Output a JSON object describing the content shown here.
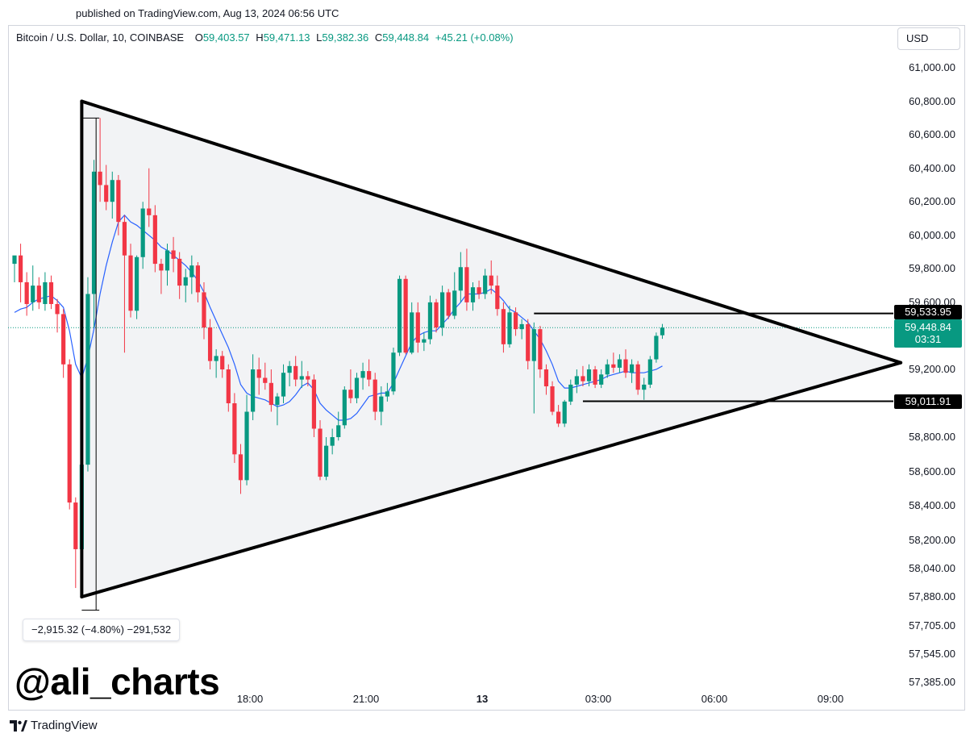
{
  "published": "published on TradingView.com, Aug 13, 2024 06:56 UTC",
  "legend": {
    "symbol": "Bitcoin / U.S. Dollar, 10, COINBASE",
    "o_key": "O",
    "o": "59,403.57",
    "h_key": "H",
    "h": "59,471.13",
    "l_key": "L",
    "l": "59,382.36",
    "c_key": "C",
    "c": "59,448.84",
    "change": "+45.21 (+0.08%)"
  },
  "currency_button": "USD",
  "price_labels": {
    "resistance": "59,533.95",
    "current": "59,448.84",
    "countdown": "03:31",
    "support": "59,011.91"
  },
  "measure_label": "−2,915.32 (−4.80%) −291,532",
  "watermark": "@ali_charts",
  "brand": "TradingView",
  "colors": {
    "up": "#089981",
    "down": "#f23645",
    "ma": "#2962ff",
    "triangle_fill": "#f2f3f5",
    "lines": "#000000"
  },
  "chart_data": {
    "type": "candlestick",
    "symbol": "Bitcoin / U.S. Dollar",
    "interval": "10",
    "exchange": "COINBASE",
    "y_axis_ticks": [
      "61,000.00",
      "60,800.00",
      "60,600.00",
      "60,400.00",
      "60,200.00",
      "60,000.00",
      "59,800.00",
      "59,600.00",
      "59,200.00",
      "58,800.00",
      "58,600.00",
      "58,400.00",
      "58,200.00",
      "58,040.00",
      "57,880.00",
      "57,705.00",
      "57,545.00",
      "57,385.00"
    ],
    "x_axis_ticks": [
      {
        "label": "18:00",
        "hour": 18,
        "bold": false
      },
      {
        "label": "21:00",
        "hour": 21,
        "bold": false
      },
      {
        "label": "13",
        "hour": 24,
        "bold": true
      },
      {
        "label": "03:00",
        "hour": 27,
        "bold": false
      },
      {
        "label": "06:00",
        "hour": 30,
        "bold": false
      },
      {
        "label": "09:00",
        "hour": 33,
        "bold": false
      }
    ],
    "candles": [
      {
        "t": 0,
        "o": 59830,
        "h": 59860,
        "l": 59720,
        "c": 59880
      },
      {
        "t": 1,
        "o": 59880,
        "h": 59950,
        "l": 59600,
        "c": 59720
      },
      {
        "t": 2,
        "o": 59720,
        "h": 59780,
        "l": 59520,
        "c": 59590
      },
      {
        "t": 3,
        "o": 59600,
        "h": 59820,
        "l": 59550,
        "c": 59700
      },
      {
        "t": 4,
        "o": 59700,
        "h": 59750,
        "l": 59560,
        "c": 59600
      },
      {
        "t": 5,
        "o": 59590,
        "h": 59780,
        "l": 59550,
        "c": 59720
      },
      {
        "t": 6,
        "o": 59720,
        "h": 59760,
        "l": 59560,
        "c": 59590
      },
      {
        "t": 7,
        "o": 59590,
        "h": 59620,
        "l": 59420,
        "c": 59530
      },
      {
        "t": 8,
        "o": 59530,
        "h": 59560,
        "l": 59150,
        "c": 59230
      },
      {
        "t": 9,
        "o": 59230,
        "h": 59260,
        "l": 58380,
        "c": 58420
      },
      {
        "t": 10,
        "o": 58420,
        "h": 58450,
        "l": 57930,
        "c": 58150
      },
      {
        "t": 11,
        "o": 58150,
        "h": 58800,
        "l": 58050,
        "c": 58640
      },
      {
        "t": 12,
        "o": 58640,
        "h": 59750,
        "l": 58600,
        "c": 59650
      },
      {
        "t": 13,
        "o": 59650,
        "h": 60450,
        "l": 59450,
        "c": 60380
      },
      {
        "t": 14,
        "o": 60380,
        "h": 60700,
        "l": 60200,
        "c": 60300
      },
      {
        "t": 15,
        "o": 60300,
        "h": 60420,
        "l": 60150,
        "c": 60200
      },
      {
        "t": 16,
        "o": 60200,
        "h": 60380,
        "l": 60100,
        "c": 60330
      },
      {
        "t": 17,
        "o": 60330,
        "h": 60360,
        "l": 60000,
        "c": 60080
      },
      {
        "t": 18,
        "o": 60080,
        "h": 60120,
        "l": 59300,
        "c": 59880
      },
      {
        "t": 19,
        "o": 59880,
        "h": 59950,
        "l": 59510,
        "c": 59550
      },
      {
        "t": 20,
        "o": 59550,
        "h": 59880,
        "l": 59500,
        "c": 59870
      },
      {
        "t": 21,
        "o": 59870,
        "h": 60200,
        "l": 59800,
        "c": 60160
      },
      {
        "t": 22,
        "o": 60160,
        "h": 60400,
        "l": 60050,
        "c": 60120
      },
      {
        "t": 23,
        "o": 60120,
        "h": 60180,
        "l": 59780,
        "c": 59830
      },
      {
        "t": 24,
        "o": 59830,
        "h": 59860,
        "l": 59650,
        "c": 59790
      },
      {
        "t": 25,
        "o": 59790,
        "h": 59950,
        "l": 59700,
        "c": 59910
      },
      {
        "t": 26,
        "o": 59910,
        "h": 59990,
        "l": 59780,
        "c": 59860
      },
      {
        "t": 27,
        "o": 59860,
        "h": 59900,
        "l": 59620,
        "c": 59700
      },
      {
        "t": 28,
        "o": 59700,
        "h": 59800,
        "l": 59600,
        "c": 59750
      },
      {
        "t": 29,
        "o": 59750,
        "h": 59880,
        "l": 59650,
        "c": 59820
      },
      {
        "t": 30,
        "o": 59820,
        "h": 59840,
        "l": 59600,
        "c": 59660
      },
      {
        "t": 31,
        "o": 59660,
        "h": 59720,
        "l": 59380,
        "c": 59450
      },
      {
        "t": 32,
        "o": 59450,
        "h": 59500,
        "l": 59200,
        "c": 59250
      },
      {
        "t": 33,
        "o": 59250,
        "h": 59320,
        "l": 59150,
        "c": 59280
      },
      {
        "t": 34,
        "o": 59280,
        "h": 59310,
        "l": 59150,
        "c": 59200
      },
      {
        "t": 35,
        "o": 59200,
        "h": 59230,
        "l": 58950,
        "c": 59000
      },
      {
        "t": 36,
        "o": 59000,
        "h": 59060,
        "l": 58650,
        "c": 58700
      },
      {
        "t": 37,
        "o": 58700,
        "h": 58760,
        "l": 58470,
        "c": 58550
      },
      {
        "t": 38,
        "o": 58550,
        "h": 59050,
        "l": 58520,
        "c": 58950
      },
      {
        "t": 39,
        "o": 58950,
        "h": 59290,
        "l": 58900,
        "c": 59200
      },
      {
        "t": 40,
        "o": 59200,
        "h": 59270,
        "l": 59050,
        "c": 59150
      },
      {
        "t": 41,
        "o": 59150,
        "h": 59240,
        "l": 59080,
        "c": 59120
      },
      {
        "t": 42,
        "o": 59120,
        "h": 59200,
        "l": 58950,
        "c": 58990
      },
      {
        "t": 43,
        "o": 58990,
        "h": 59060,
        "l": 58870,
        "c": 59040
      },
      {
        "t": 44,
        "o": 59040,
        "h": 59230,
        "l": 59000,
        "c": 59180
      },
      {
        "t": 45,
        "o": 59180,
        "h": 59250,
        "l": 59100,
        "c": 59220
      },
      {
        "t": 46,
        "o": 59220,
        "h": 59280,
        "l": 59100,
        "c": 59140
      },
      {
        "t": 47,
        "o": 59140,
        "h": 59250,
        "l": 59090,
        "c": 59160
      },
      {
        "t": 48,
        "o": 59160,
        "h": 59190,
        "l": 59100,
        "c": 59140
      },
      {
        "t": 49,
        "o": 59140,
        "h": 59170,
        "l": 58800,
        "c": 58850
      },
      {
        "t": 50,
        "o": 58850,
        "h": 58900,
        "l": 58550,
        "c": 58570
      },
      {
        "t": 51,
        "o": 58570,
        "h": 58800,
        "l": 58550,
        "c": 58750
      },
      {
        "t": 52,
        "o": 58750,
        "h": 58850,
        "l": 58700,
        "c": 58800
      },
      {
        "t": 53,
        "o": 58800,
        "h": 58950,
        "l": 58780,
        "c": 58870
      },
      {
        "t": 54,
        "o": 58870,
        "h": 59100,
        "l": 58850,
        "c": 59080
      },
      {
        "t": 55,
        "o": 59080,
        "h": 59200,
        "l": 59000,
        "c": 59030
      },
      {
        "t": 56,
        "o": 59030,
        "h": 59180,
        "l": 59000,
        "c": 59150
      },
      {
        "t": 57,
        "o": 59150,
        "h": 59240,
        "l": 59080,
        "c": 59190
      },
      {
        "t": 58,
        "o": 59190,
        "h": 59260,
        "l": 59100,
        "c": 59140
      },
      {
        "t": 59,
        "o": 59140,
        "h": 59180,
        "l": 58900,
        "c": 58950
      },
      {
        "t": 60,
        "o": 58950,
        "h": 59100,
        "l": 58870,
        "c": 59040
      },
      {
        "t": 61,
        "o": 59040,
        "h": 59120,
        "l": 59010,
        "c": 59070
      },
      {
        "t": 62,
        "o": 59070,
        "h": 59330,
        "l": 59050,
        "c": 59300
      },
      {
        "t": 63,
        "o": 59300,
        "h": 59760,
        "l": 59280,
        "c": 59740
      },
      {
        "t": 64,
        "o": 59740,
        "h": 59760,
        "l": 59290,
        "c": 59300
      },
      {
        "t": 65,
        "o": 59300,
        "h": 59600,
        "l": 59290,
        "c": 59540
      },
      {
        "t": 66,
        "o": 59540,
        "h": 59600,
        "l": 59300,
        "c": 59360
      },
      {
        "t": 67,
        "o": 59360,
        "h": 59420,
        "l": 59310,
        "c": 59380
      },
      {
        "t": 68,
        "o": 59380,
        "h": 59640,
        "l": 59350,
        "c": 59600
      },
      {
        "t": 69,
        "o": 59600,
        "h": 59620,
        "l": 59420,
        "c": 59450
      },
      {
        "t": 70,
        "o": 59450,
        "h": 59700,
        "l": 59400,
        "c": 59660
      },
      {
        "t": 71,
        "o": 59660,
        "h": 59680,
        "l": 59500,
        "c": 59520
      },
      {
        "t": 72,
        "o": 59520,
        "h": 59780,
        "l": 59500,
        "c": 59670
      },
      {
        "t": 73,
        "o": 59670,
        "h": 59900,
        "l": 59600,
        "c": 59810
      },
      {
        "t": 74,
        "o": 59810,
        "h": 59920,
        "l": 59550,
        "c": 59600
      },
      {
        "t": 75,
        "o": 59600,
        "h": 59720,
        "l": 59550,
        "c": 59690
      },
      {
        "t": 76,
        "o": 59690,
        "h": 59730,
        "l": 59620,
        "c": 59650
      },
      {
        "t": 77,
        "o": 59650,
        "h": 59800,
        "l": 59620,
        "c": 59760
      },
      {
        "t": 78,
        "o": 59760,
        "h": 59850,
        "l": 59650,
        "c": 59700
      },
      {
        "t": 79,
        "o": 59700,
        "h": 59760,
        "l": 59520,
        "c": 59560
      },
      {
        "t": 80,
        "o": 59560,
        "h": 59600,
        "l": 59300,
        "c": 59350
      },
      {
        "t": 81,
        "o": 59350,
        "h": 59580,
        "l": 59330,
        "c": 59540
      },
      {
        "t": 82,
        "o": 59540,
        "h": 59570,
        "l": 59400,
        "c": 59440
      },
      {
        "t": 83,
        "o": 59440,
        "h": 59500,
        "l": 59380,
        "c": 59470
      },
      {
        "t": 84,
        "o": 59470,
        "h": 59500,
        "l": 59200,
        "c": 59250
      },
      {
        "t": 85,
        "o": 59250,
        "h": 59480,
        "l": 58940,
        "c": 59440
      },
      {
        "t": 86,
        "o": 59440,
        "h": 59460,
        "l": 59150,
        "c": 59200
      },
      {
        "t": 87,
        "o": 59200,
        "h": 59230,
        "l": 59050,
        "c": 59100
      },
      {
        "t": 88,
        "o": 59100,
        "h": 59130,
        "l": 58930,
        "c": 58950
      },
      {
        "t": 89,
        "o": 58950,
        "h": 58990,
        "l": 58860,
        "c": 58880
      },
      {
        "t": 90,
        "o": 58880,
        "h": 59020,
        "l": 58860,
        "c": 59010
      },
      {
        "t": 91,
        "o": 59010,
        "h": 59140,
        "l": 58990,
        "c": 59110
      },
      {
        "t": 92,
        "o": 59110,
        "h": 59200,
        "l": 59060,
        "c": 59160
      },
      {
        "t": 93,
        "o": 59160,
        "h": 59220,
        "l": 59100,
        "c": 59130
      },
      {
        "t": 94,
        "o": 59130,
        "h": 59230,
        "l": 59100,
        "c": 59200
      },
      {
        "t": 95,
        "o": 59200,
        "h": 59220,
        "l": 59090,
        "c": 59110
      },
      {
        "t": 96,
        "o": 59110,
        "h": 59200,
        "l": 59090,
        "c": 59170
      },
      {
        "t": 97,
        "o": 59170,
        "h": 59260,
        "l": 59150,
        "c": 59230
      },
      {
        "t": 98,
        "o": 59230,
        "h": 59300,
        "l": 59180,
        "c": 59210
      },
      {
        "t": 99,
        "o": 59210,
        "h": 59290,
        "l": 59180,
        "c": 59260
      },
      {
        "t": 100,
        "o": 59260,
        "h": 59320,
        "l": 59150,
        "c": 59180
      },
      {
        "t": 101,
        "o": 59180,
        "h": 59260,
        "l": 59120,
        "c": 59230
      },
      {
        "t": 102,
        "o": 59230,
        "h": 59250,
        "l": 59050,
        "c": 59080
      },
      {
        "t": 103,
        "o": 59080,
        "h": 59150,
        "l": 59020,
        "c": 59110
      },
      {
        "t": 104,
        "o": 59110,
        "h": 59280,
        "l": 59090,
        "c": 59260
      },
      {
        "t": 105,
        "o": 59260,
        "h": 59420,
        "l": 59240,
        "c": 59400
      },
      {
        "t": 106,
        "o": 59403.57,
        "h": 59471.13,
        "l": 59382.36,
        "c": 59448.84
      }
    ],
    "moving_average": {
      "period_candles": "approx",
      "values": [
        59540,
        59560,
        59570,
        59600,
        59620,
        59630,
        59640,
        59610,
        59570,
        59430,
        59230,
        59150,
        59270,
        59440,
        59650,
        59820,
        59960,
        60080,
        60120,
        60080,
        60060,
        60030,
        60000,
        59970,
        59930,
        59910,
        59880,
        59850,
        59820,
        59780,
        59730,
        59660,
        59570,
        59490,
        59410,
        59330,
        59230,
        59110,
        59060,
        59040,
        59030,
        59020,
        59000,
        58980,
        58990,
        59010,
        59050,
        59100,
        59120,
        59080,
        59000,
        58960,
        58930,
        58900,
        58900,
        58910,
        58940,
        58990,
        59040,
        59050,
        59060,
        59060,
        59120,
        59200,
        59280,
        59360,
        59400,
        59420,
        59430,
        59430,
        59470,
        59510,
        59560,
        59600,
        59650,
        59650,
        59650,
        59660,
        59680,
        59650,
        59610,
        59560,
        59540,
        59510,
        59480,
        59430,
        59380,
        59310,
        59230,
        59130,
        59090,
        59090,
        59100,
        59110,
        59120,
        59130,
        59140,
        59160,
        59170,
        59180,
        59190,
        59180,
        59180,
        59180,
        59190,
        59200,
        59220
      ]
    },
    "triangle": {
      "apex_left_top": {
        "t": 11,
        "p": 60800
      },
      "apex_left_bottom": {
        "t": 11,
        "p": 57880
      },
      "apex_right": {
        "t": 145,
        "p": 59240
      }
    },
    "horizontal_levels": [
      {
        "p": 59533.95,
        "from_t": 85
      },
      {
        "p": 59011.91,
        "from_t": 93
      }
    ],
    "measure": {
      "from_p": 60700,
      "to_p": 57800,
      "t": 11.5
    }
  }
}
